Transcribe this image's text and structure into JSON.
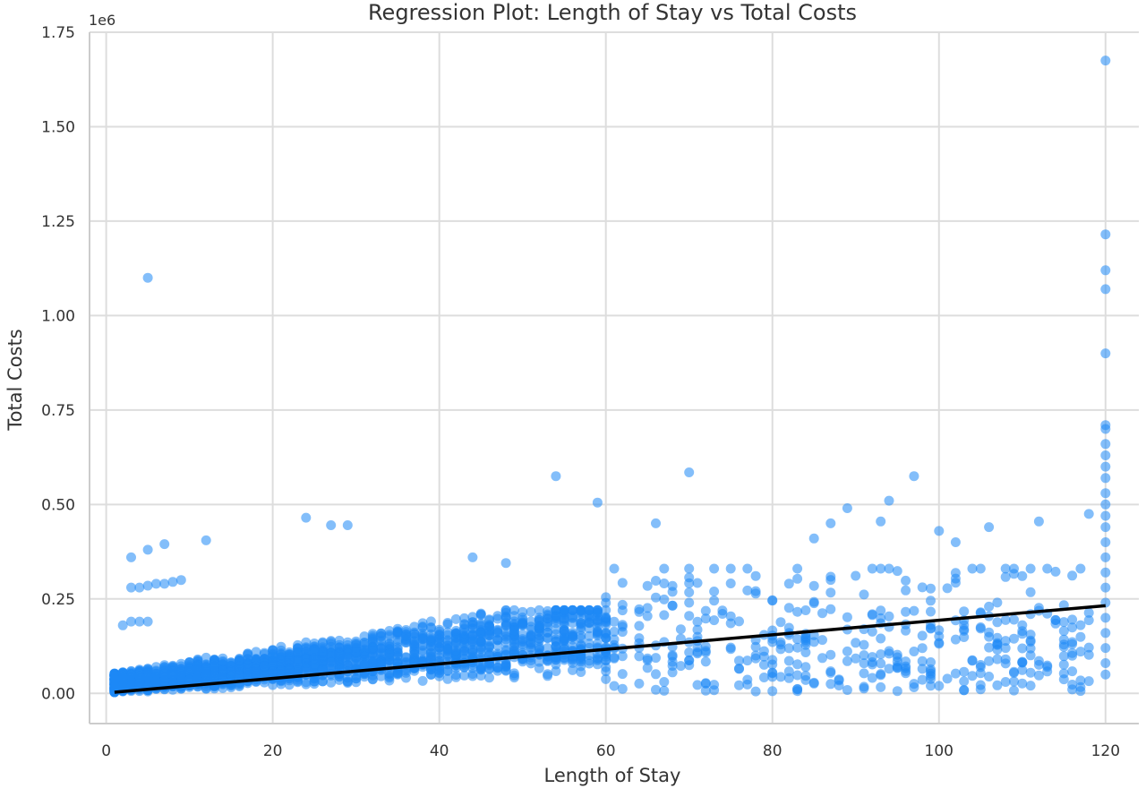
{
  "chart_data": {
    "type": "scatter",
    "title": "Regression Plot: Length of Stay vs Total Costs",
    "xlabel": "Length of Stay",
    "ylabel": "Total Costs",
    "y_offset_label": "1e6",
    "xlim": [
      -2,
      124
    ],
    "ylim": [
      -0.08,
      1.75
    ],
    "x_ticks": [
      0,
      20,
      40,
      60,
      80,
      100,
      120
    ],
    "x_tick_labels": [
      "0",
      "20",
      "40",
      "60",
      "80",
      "100",
      "120"
    ],
    "y_ticks": [
      0.0,
      0.25,
      0.5,
      0.75,
      1.0,
      1.25,
      1.5,
      1.75
    ],
    "y_tick_labels": [
      "0.00",
      "0.25",
      "0.50",
      "0.75",
      "1.00",
      "1.25",
      "1.50",
      "1.75"
    ],
    "y_units": "millions (1e6)",
    "grid": true,
    "legend": "none",
    "colors": {
      "points": "#1e88f5",
      "regression_line": "#000000",
      "grid": "#dddddd"
    },
    "series": [
      {
        "kind": "scatter",
        "notable_points": [
          [
            5,
            1.1
          ],
          [
            120,
            1.675
          ],
          [
            120,
            1.215
          ],
          [
            120,
            1.12
          ],
          [
            120,
            1.07
          ],
          [
            120,
            0.9
          ],
          [
            120,
            0.71
          ],
          [
            120,
            0.7
          ],
          [
            120,
            0.66
          ],
          [
            120,
            0.63
          ],
          [
            120,
            0.6
          ],
          [
            120,
            0.57
          ],
          [
            120,
            0.53
          ],
          [
            120,
            0.5
          ],
          [
            120,
            0.47
          ],
          [
            120,
            0.44
          ],
          [
            120,
            0.4
          ],
          [
            120,
            0.36
          ],
          [
            120,
            0.32
          ],
          [
            120,
            0.28
          ],
          [
            120,
            0.24
          ],
          [
            120,
            0.2
          ],
          [
            120,
            0.16
          ],
          [
            120,
            0.12
          ],
          [
            120,
            0.08
          ],
          [
            120,
            0.05
          ],
          [
            54,
            0.575
          ],
          [
            70,
            0.585
          ],
          [
            97,
            0.575
          ],
          [
            59,
            0.505
          ],
          [
            24,
            0.465
          ],
          [
            27,
            0.445
          ],
          [
            29,
            0.445
          ],
          [
            89,
            0.49
          ],
          [
            94,
            0.51
          ],
          [
            93,
            0.455
          ],
          [
            112,
            0.455
          ],
          [
            118,
            0.475
          ],
          [
            7,
            0.395
          ],
          [
            12,
            0.405
          ],
          [
            5,
            0.38
          ],
          [
            3,
            0.36
          ],
          [
            44,
            0.36
          ],
          [
            48,
            0.345
          ],
          [
            66,
            0.45
          ],
          [
            85,
            0.41
          ],
          [
            87,
            0.45
          ],
          [
            100,
            0.43
          ],
          [
            102,
            0.4
          ],
          [
            106,
            0.44
          ],
          [
            3,
            0.28
          ],
          [
            4,
            0.28
          ],
          [
            5,
            0.285
          ],
          [
            6,
            0.29
          ],
          [
            7,
            0.29
          ],
          [
            8,
            0.295
          ],
          [
            9,
            0.3
          ],
          [
            3,
            0.19
          ],
          [
            4,
            0.19
          ],
          [
            5,
            0.19
          ],
          [
            2,
            0.18
          ]
        ],
        "bulk_distribution": "dense cloud for x in 1–60 with y roughly 0–0.20, thinning for x 60–119 with y 0–0.30"
      },
      {
        "kind": "line",
        "name": "",
        "x": [
          1,
          120
        ],
        "y": [
          0.003,
          0.232
        ]
      }
    ]
  }
}
